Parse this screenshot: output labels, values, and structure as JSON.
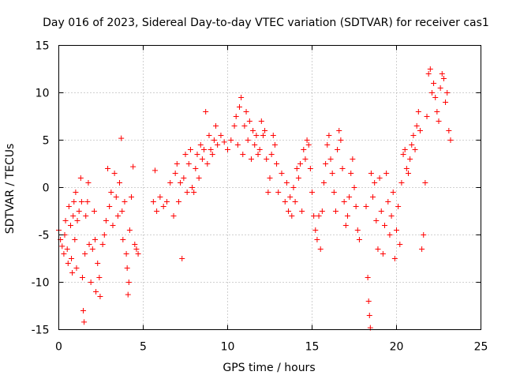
{
  "chart_data": {
    "type": "scatter",
    "title": "Day 016 of 2023, Sidereal Day-to-day VTEC variation (SDTVAR) for receiver cas1",
    "xlabel": "GPS time / hours",
    "ylabel": "SDTVAR / TECUs",
    "xlim": [
      0,
      25
    ],
    "ylim": [
      -15,
      15
    ],
    "xticks": [
      0,
      5,
      10,
      15,
      20,
      25
    ],
    "yticks": [
      -15,
      -10,
      -5,
      0,
      5,
      10,
      15
    ],
    "xtick_labels": [
      "0",
      "5",
      "10",
      "15",
      "20",
      "25"
    ],
    "ytick_labels": [
      "-15",
      "-10",
      "-5",
      "0",
      "5",
      "10",
      "15"
    ],
    "grid": true,
    "marker": "+",
    "marker_color": "#ff0000",
    "series": [
      {
        "name": "SDTVAR",
        "points": [
          [
            0.0,
            -4.5
          ],
          [
            0.1,
            -5.5
          ],
          [
            0.2,
            -6.2
          ],
          [
            0.3,
            -7.0
          ],
          [
            0.35,
            -5.0
          ],
          [
            0.4,
            -3.5
          ],
          [
            0.5,
            -6.5
          ],
          [
            0.55,
            -8.0
          ],
          [
            0.6,
            -2.0
          ],
          [
            0.7,
            -4.0
          ],
          [
            0.75,
            -7.5
          ],
          [
            0.8,
            -9.0
          ],
          [
            0.85,
            -3.0
          ],
          [
            0.9,
            -1.5
          ],
          [
            0.95,
            -5.5
          ],
          [
            1.0,
            -0.5
          ],
          [
            1.05,
            -8.5
          ],
          [
            1.1,
            -3.5
          ],
          [
            1.2,
            -2.5
          ],
          [
            1.3,
            1.0
          ],
          [
            1.35,
            -1.5
          ],
          [
            1.4,
            -9.5
          ],
          [
            1.45,
            -13.0
          ],
          [
            1.5,
            -14.2
          ],
          [
            1.55,
            -7.0
          ],
          [
            1.6,
            -3.0
          ],
          [
            1.7,
            -1.5
          ],
          [
            1.75,
            0.5
          ],
          [
            1.8,
            -6.0
          ],
          [
            1.9,
            -10.0
          ],
          [
            2.0,
            -6.5
          ],
          [
            2.1,
            -2.5
          ],
          [
            2.15,
            -5.5
          ],
          [
            2.2,
            -11.0
          ],
          [
            2.3,
            -8.0
          ],
          [
            2.4,
            -9.5
          ],
          [
            2.45,
            -11.5
          ],
          [
            2.6,
            -6.0
          ],
          [
            2.7,
            -5.0
          ],
          [
            2.8,
            -3.5
          ],
          [
            2.9,
            2.0
          ],
          [
            3.0,
            -2.0
          ],
          [
            3.1,
            -0.5
          ],
          [
            3.2,
            -4.0
          ],
          [
            3.3,
            1.5
          ],
          [
            3.4,
            -1.0
          ],
          [
            3.5,
            -3.0
          ],
          [
            3.6,
            0.5
          ],
          [
            3.7,
            5.2
          ],
          [
            3.75,
            -2.5
          ],
          [
            3.8,
            -5.5
          ],
          [
            3.9,
            -1.5
          ],
          [
            4.0,
            -7.0
          ],
          [
            4.05,
            -8.5
          ],
          [
            4.1,
            -11.3
          ],
          [
            4.15,
            -10.0
          ],
          [
            4.2,
            -4.5
          ],
          [
            4.3,
            -1.0
          ],
          [
            4.4,
            2.2
          ],
          [
            4.5,
            -6.0
          ],
          [
            4.6,
            -6.5
          ],
          [
            4.7,
            -7.0
          ],
          [
            5.6,
            -1.5
          ],
          [
            5.7,
            1.8
          ],
          [
            5.8,
            -2.5
          ],
          [
            6.0,
            -1.0
          ],
          [
            6.2,
            -2.0
          ],
          [
            6.4,
            -1.5
          ],
          [
            6.6,
            0.5
          ],
          [
            6.8,
            -3.0
          ],
          [
            6.9,
            1.5
          ],
          [
            7.0,
            2.5
          ],
          [
            7.1,
            -1.5
          ],
          [
            7.2,
            0.5
          ],
          [
            7.3,
            -7.5
          ],
          [
            7.4,
            1.0
          ],
          [
            7.5,
            3.5
          ],
          [
            7.6,
            -0.5
          ],
          [
            7.7,
            2.5
          ],
          [
            7.8,
            4.0
          ],
          [
            7.9,
            0.0
          ],
          [
            8.0,
            -0.5
          ],
          [
            8.1,
            2.0
          ],
          [
            8.2,
            3.5
          ],
          [
            8.3,
            1.0
          ],
          [
            8.4,
            4.5
          ],
          [
            8.5,
            3.0
          ],
          [
            8.6,
            4.0
          ],
          [
            8.7,
            8.0
          ],
          [
            8.8,
            2.5
          ],
          [
            8.9,
            5.5
          ],
          [
            9.0,
            4.0
          ],
          [
            9.1,
            3.5
          ],
          [
            9.2,
            5.0
          ],
          [
            9.3,
            6.5
          ],
          [
            9.4,
            4.5
          ],
          [
            9.6,
            5.5
          ],
          [
            9.8,
            4.8
          ],
          [
            10.0,
            4.0
          ],
          [
            10.2,
            5.0
          ],
          [
            10.4,
            6.5
          ],
          [
            10.5,
            7.5
          ],
          [
            10.6,
            4.5
          ],
          [
            10.7,
            8.5
          ],
          [
            10.8,
            9.5
          ],
          [
            10.9,
            3.5
          ],
          [
            11.0,
            6.5
          ],
          [
            11.1,
            8.0
          ],
          [
            11.2,
            5.0
          ],
          [
            11.3,
            7.0
          ],
          [
            11.4,
            3.0
          ],
          [
            11.5,
            6.0
          ],
          [
            11.6,
            4.5
          ],
          [
            11.7,
            5.5
          ],
          [
            11.8,
            3.5
          ],
          [
            11.9,
            4.0
          ],
          [
            12.0,
            7.0
          ],
          [
            12.1,
            5.5
          ],
          [
            12.2,
            6.0
          ],
          [
            12.3,
            3.0
          ],
          [
            12.4,
            -0.5
          ],
          [
            12.5,
            1.0
          ],
          [
            12.6,
            3.5
          ],
          [
            12.7,
            5.5
          ],
          [
            12.8,
            4.5
          ],
          [
            12.9,
            2.5
          ],
          [
            13.0,
            -0.5
          ],
          [
            13.2,
            1.5
          ],
          [
            13.4,
            -1.5
          ],
          [
            13.5,
            0.5
          ],
          [
            13.6,
            -2.5
          ],
          [
            13.7,
            -1.0
          ],
          [
            13.8,
            -3.0
          ],
          [
            13.9,
            0.0
          ],
          [
            14.0,
            -1.5
          ],
          [
            14.1,
            2.0
          ],
          [
            14.2,
            1.0
          ],
          [
            14.3,
            2.5
          ],
          [
            14.4,
            -2.5
          ],
          [
            14.5,
            4.0
          ],
          [
            14.6,
            3.0
          ],
          [
            14.7,
            5.0
          ],
          [
            14.8,
            4.5
          ],
          [
            14.9,
            2.0
          ],
          [
            15.0,
            -0.5
          ],
          [
            15.1,
            -3.0
          ],
          [
            15.2,
            -4.5
          ],
          [
            15.3,
            -5.5
          ],
          [
            15.4,
            -3.0
          ],
          [
            15.5,
            -6.5
          ],
          [
            15.6,
            -2.5
          ],
          [
            15.7,
            0.5
          ],
          [
            15.8,
            2.5
          ],
          [
            15.9,
            4.5
          ],
          [
            16.0,
            5.5
          ],
          [
            16.1,
            3.0
          ],
          [
            16.2,
            1.5
          ],
          [
            16.3,
            -0.5
          ],
          [
            16.4,
            -2.5
          ],
          [
            16.5,
            4.0
          ],
          [
            16.6,
            6.0
          ],
          [
            16.7,
            5.0
          ],
          [
            16.8,
            2.0
          ],
          [
            16.9,
            -1.5
          ],
          [
            17.0,
            -4.0
          ],
          [
            17.1,
            -3.0
          ],
          [
            17.2,
            -1.0
          ],
          [
            17.3,
            1.5
          ],
          [
            17.4,
            3.0
          ],
          [
            17.5,
            0.0
          ],
          [
            17.6,
            -2.0
          ],
          [
            17.7,
            -4.5
          ],
          [
            17.8,
            -5.5
          ],
          [
            18.2,
            -2.0
          ],
          [
            18.3,
            -9.5
          ],
          [
            18.35,
            -12.0
          ],
          [
            18.4,
            -13.5
          ],
          [
            18.45,
            -14.8
          ],
          [
            18.5,
            1.5
          ],
          [
            18.6,
            -1.0
          ],
          [
            18.7,
            0.5
          ],
          [
            18.8,
            -3.5
          ],
          [
            18.9,
            -6.5
          ],
          [
            19.0,
            1.0
          ],
          [
            19.1,
            -2.5
          ],
          [
            19.2,
            -7.0
          ],
          [
            19.3,
            -4.0
          ],
          [
            19.4,
            1.5
          ],
          [
            19.5,
            -1.5
          ],
          [
            19.6,
            -5.0
          ],
          [
            19.7,
            -3.0
          ],
          [
            19.8,
            -0.5
          ],
          [
            19.9,
            -7.5
          ],
          [
            20.0,
            -4.5
          ],
          [
            20.1,
            -2.0
          ],
          [
            20.2,
            -6.0
          ],
          [
            20.3,
            0.5
          ],
          [
            20.4,
            3.5
          ],
          [
            20.5,
            4.0
          ],
          [
            20.6,
            2.0
          ],
          [
            20.7,
            1.5
          ],
          [
            20.8,
            3.0
          ],
          [
            20.9,
            4.5
          ],
          [
            21.0,
            5.5
          ],
          [
            21.1,
            4.0
          ],
          [
            21.2,
            6.5
          ],
          [
            21.3,
            8.0
          ],
          [
            21.4,
            6.0
          ],
          [
            21.5,
            -6.5
          ],
          [
            21.6,
            -5.0
          ],
          [
            21.7,
            0.5
          ],
          [
            21.8,
            7.5
          ],
          [
            21.9,
            12.0
          ],
          [
            22.0,
            12.5
          ],
          [
            22.1,
            10.0
          ],
          [
            22.2,
            11.0
          ],
          [
            22.3,
            9.5
          ],
          [
            22.4,
            8.0
          ],
          [
            22.5,
            7.0
          ],
          [
            22.6,
            10.5
          ],
          [
            22.7,
            12.0
          ],
          [
            22.8,
            11.5
          ],
          [
            22.9,
            9.0
          ],
          [
            23.0,
            10.0
          ],
          [
            23.1,
            6.0
          ],
          [
            23.2,
            5.0
          ]
        ]
      }
    ]
  }
}
